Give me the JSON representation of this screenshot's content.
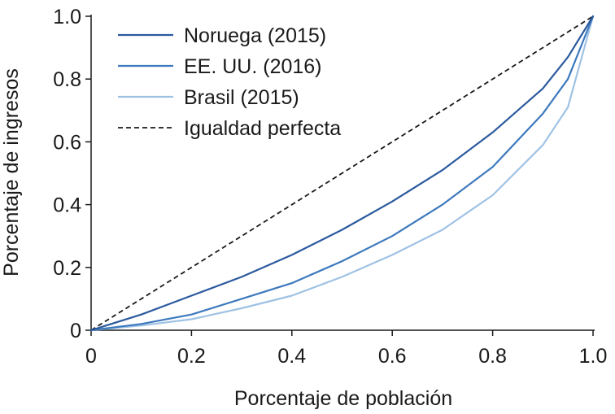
{
  "chart_data": {
    "type": "line",
    "title": "",
    "xlabel": "Porcentaje de población",
    "ylabel": "Porcentaje de ingresos",
    "xlim": [
      0,
      1
    ],
    "ylim": [
      0,
      1
    ],
    "x_ticks": [
      0,
      0.2,
      0.4,
      0.6,
      0.8,
      1.0
    ],
    "x_tick_labels": [
      "0",
      "0.2",
      "0.4",
      "0.6",
      "0.8",
      "1.0"
    ],
    "y_ticks": [
      0,
      0.2,
      0.4,
      0.6,
      0.8,
      1.0
    ],
    "y_tick_labels": [
      "0",
      "0.2",
      "0.4",
      "0.6",
      "0.8",
      "1.0"
    ],
    "grid": false,
    "legend_position": "top-left",
    "series": [
      {
        "name": "Noruega (2015)",
        "color": "#2b5a9e",
        "dash": "solid",
        "x": [
          0,
          0.1,
          0.2,
          0.3,
          0.4,
          0.5,
          0.6,
          0.7,
          0.8,
          0.9,
          0.95,
          1.0
        ],
        "y": [
          0,
          0.05,
          0.11,
          0.17,
          0.24,
          0.32,
          0.41,
          0.51,
          0.63,
          0.77,
          0.87,
          1.0
        ]
      },
      {
        "name": "EE. UU. (2016)",
        "color": "#3d79bd",
        "dash": "solid",
        "x": [
          0,
          0.1,
          0.2,
          0.3,
          0.4,
          0.5,
          0.6,
          0.7,
          0.8,
          0.9,
          0.95,
          1.0
        ],
        "y": [
          0,
          0.02,
          0.05,
          0.1,
          0.15,
          0.22,
          0.3,
          0.4,
          0.52,
          0.69,
          0.8,
          1.0
        ]
      },
      {
        "name": "Brasil (2015)",
        "color": "#9fc2e4",
        "dash": "solid",
        "x": [
          0,
          0.1,
          0.2,
          0.3,
          0.4,
          0.5,
          0.6,
          0.7,
          0.8,
          0.9,
          0.95,
          1.0
        ],
        "y": [
          0,
          0.015,
          0.035,
          0.07,
          0.11,
          0.17,
          0.24,
          0.32,
          0.43,
          0.59,
          0.71,
          1.0
        ]
      },
      {
        "name": "Igualdad perfecta",
        "color": "#1a1a1a",
        "dash": "dashed",
        "x": [
          0,
          1.0
        ],
        "y": [
          0,
          1.0
        ]
      }
    ]
  }
}
